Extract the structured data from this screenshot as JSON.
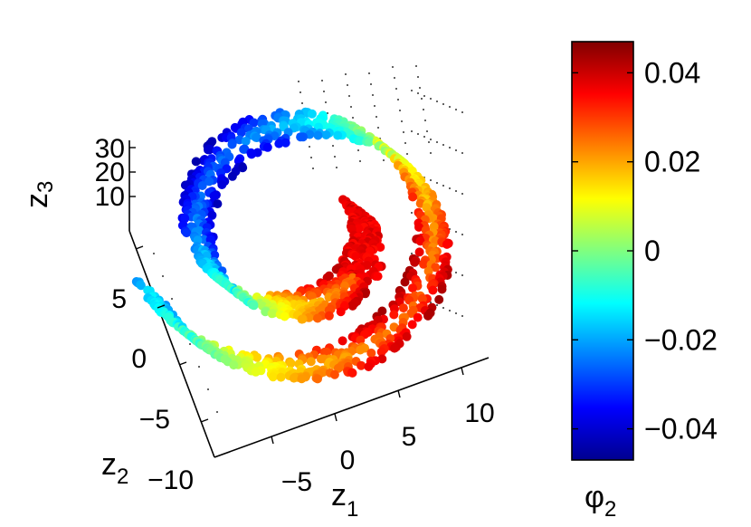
{
  "chart_data": {
    "type": "scatter",
    "title": "",
    "projection": "3d-rotated",
    "axes": {
      "z1": {
        "label": "z",
        "label_sub": "1",
        "ticks": [
          "−5",
          "0",
          "5",
          "10"
        ],
        "range": [
          -10,
          12
        ]
      },
      "z2": {
        "label": "z",
        "label_sub": "2",
        "ticks": [
          "−10",
          "−5",
          "0",
          "5"
        ],
        "range": [
          -12,
          8
        ]
      },
      "z3": {
        "label": "z",
        "label_sub": "3",
        "ticks": [
          "10",
          "20",
          "30"
        ],
        "range": [
          8,
          32
        ]
      }
    },
    "color_variable": {
      "symbol": "φ",
      "subscript": "2"
    },
    "colorbar": {
      "range": [
        -0.047,
        0.047
      ],
      "ticks": [
        "0.04",
        "0.02",
        "0",
        "−0.02",
        "−0.04"
      ],
      "tick_values": [
        0.04,
        0.02,
        0,
        -0.02,
        -0.04
      ],
      "colormap": [
        "#00008F",
        "#0000FF",
        "#00FFFF",
        "#FFFF00",
        "#FF0000",
        "#800000"
      ]
    },
    "series": [
      {
        "description_from_figure": "swiss-roll point cloud colored by phi_2",
        "arms": [
          {
            "phi2_range": [
              0.035,
              0.045
            ],
            "z1_range": [
              -9,
              2
            ],
            "z2_range": [
              2,
              6
            ]
          },
          {
            "phi2_range": [
              -0.045,
              -0.015
            ],
            "z1_range": [
              -9,
              3
            ],
            "z2_range": [
              -6,
              4
            ]
          },
          {
            "phi2_range": [
              0.015,
              0.04
            ],
            "z1_range": [
              -10,
              10
            ],
            "z2_range": [
              -6,
              7
            ]
          }
        ]
      }
    ]
  }
}
